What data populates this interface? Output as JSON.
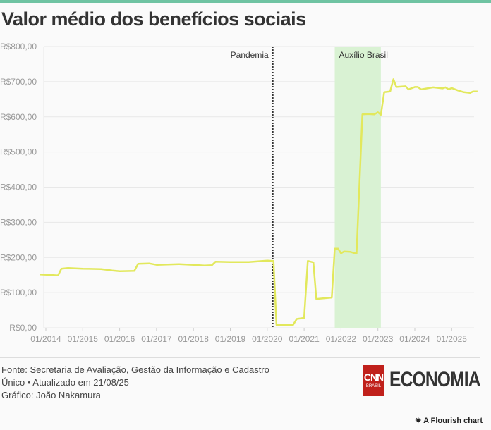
{
  "title": "Valor médio dos benefícios sociais",
  "footer": {
    "source": "Fonte: Secretaria de Avaliação, Gestão da Informação e Cadastro Único • Atualizado em 21/08/25",
    "credit": "Gráfico: João Nakamura",
    "logo_cnn": "CNN",
    "logo_brasil": "BRASIL",
    "logo_economia": "ECONOMIA",
    "flourish": "A Flourish chart"
  },
  "colors": {
    "line": "#e2e85c",
    "band": "#d9f2d3",
    "accent": "#6fc3a2"
  },
  "chart_data": {
    "type": "line",
    "title": "Valor médio dos benefícios sociais",
    "xlabel": "",
    "ylabel": "",
    "ylim": [
      0,
      800
    ],
    "xlim": [
      2013.83,
      2025.7
    ],
    "yticks": [
      0,
      100,
      200,
      300,
      400,
      500,
      600,
      700,
      800
    ],
    "ytick_labels": [
      "R$0,00",
      "R$100,00",
      "R$200,00",
      "R$300,00",
      "R$400,00",
      "R$500,00",
      "R$600,00",
      "R$700,00",
      "R$800,00"
    ],
    "xticks": [
      2014,
      2015,
      2016,
      2017,
      2018,
      2019,
      2020,
      2021,
      2022,
      2023,
      2024,
      2025
    ],
    "xtick_labels": [
      "01/2014",
      "01/2015",
      "01/2016",
      "01/2017",
      "01/2018",
      "01/2019",
      "01/2020",
      "01/2021",
      "01/2022",
      "01/2023",
      "01/2024",
      "01/2025"
    ],
    "grid": true,
    "annotations": [
      {
        "type": "vline",
        "x": 2020.17,
        "label": "Pandemia"
      },
      {
        "type": "band",
        "x0": 2021.83,
        "x1": 2023.08,
        "label": "Auxílio Brasil"
      }
    ],
    "series": [
      {
        "name": "Valor médio",
        "x": [
          2013.83,
          2014.2,
          2014.33,
          2014.42,
          2014.6,
          2015.0,
          2015.5,
          2015.8,
          2016.0,
          2016.4,
          2016.5,
          2016.8,
          2017.0,
          2017.3,
          2017.6,
          2018.0,
          2018.3,
          2018.5,
          2018.6,
          2019.0,
          2019.5,
          2020.0,
          2020.17,
          2020.25,
          2020.5,
          2020.7,
          2020.8,
          2021.0,
          2021.1,
          2021.25,
          2021.33,
          2021.75,
          2021.83,
          2021.92,
          2022.0,
          2022.08,
          2022.25,
          2022.42,
          2022.58,
          2022.75,
          2022.9,
          2023.0,
          2023.08,
          2023.17,
          2023.33,
          2023.42,
          2023.5,
          2023.75,
          2023.83,
          2024.0,
          2024.08,
          2024.17,
          2024.5,
          2024.75,
          2024.83,
          2024.92,
          2025.0,
          2025.17,
          2025.33,
          2025.5,
          2025.58,
          2025.7
        ],
        "y": [
          152,
          150,
          149,
          168,
          170,
          168,
          167,
          163,
          161,
          162,
          182,
          183,
          179,
          180,
          181,
          179,
          177,
          178,
          188,
          187,
          187,
          191,
          190,
          8,
          8,
          8,
          25,
          28,
          190,
          186,
          82,
          86,
          225,
          225,
          212,
          217,
          216,
          211,
          607,
          608,
          607,
          613,
          606,
          670,
          672,
          707,
          685,
          687,
          678,
          685,
          685,
          678,
          684,
          681,
          684,
          678,
          682,
          675,
          670,
          668,
          672,
          672
        ]
      }
    ]
  }
}
